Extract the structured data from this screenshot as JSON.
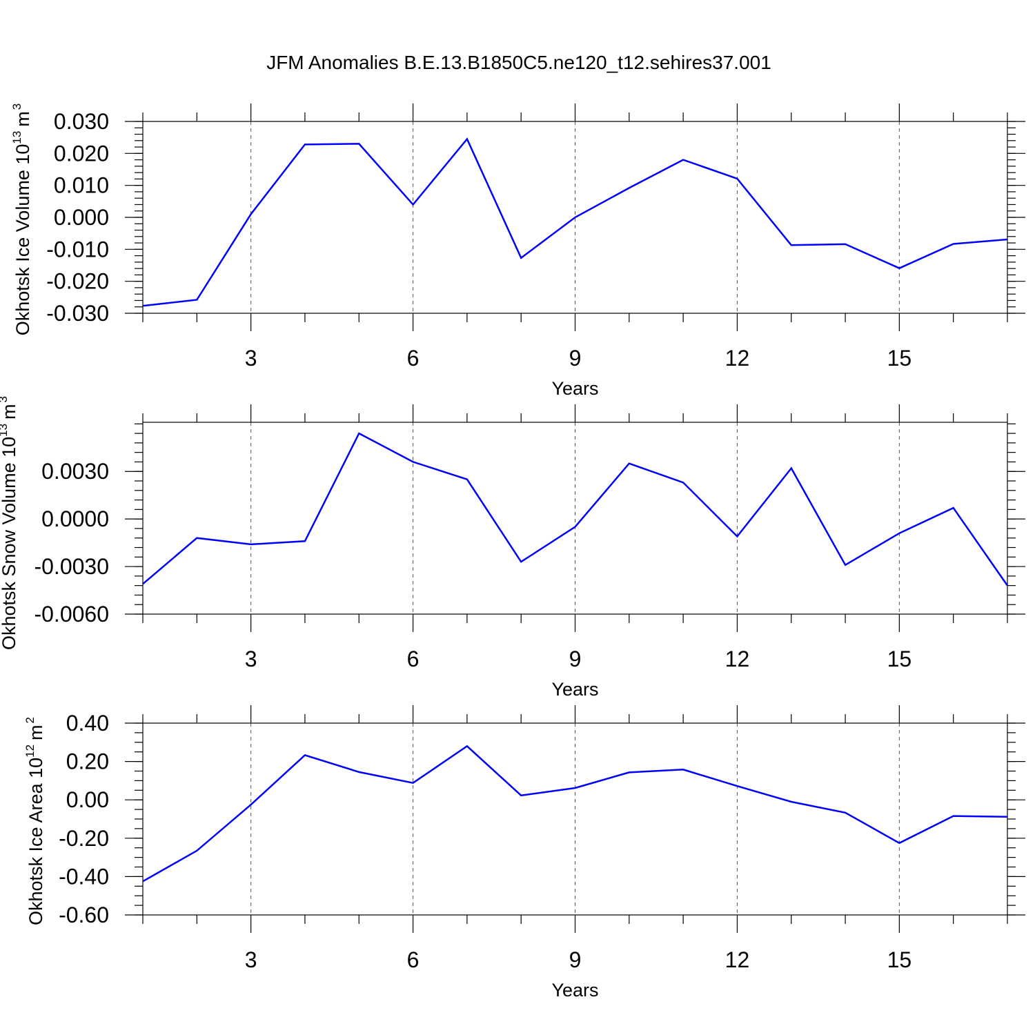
{
  "title": "JFM Anomalies B.E.13.B1850C5.ne120_t12.sehires37.001",
  "colors": {
    "series": "#0000ff",
    "frame": "#000000",
    "grid": "#555555"
  },
  "chart_data": [
    {
      "type": "line",
      "ylabel": "Okhotsk Ice Volume 10",
      "ylabel_exp": "13",
      "ylabel_unit": "m",
      "ylabel_unit_exp": "3",
      "xlabel": "Years",
      "xlim": [
        1,
        17
      ],
      "ylim": [
        -0.03,
        0.03
      ],
      "xticks": [
        3,
        6,
        9,
        12,
        15
      ],
      "xtick_labels": [
        "3",
        "6",
        "9",
        "12",
        "15"
      ],
      "yticks": [
        -0.03,
        -0.02,
        -0.01,
        0.0,
        0.01,
        0.02,
        0.03
      ],
      "ytick_labels": [
        "-0.030",
        "-0.020",
        "-0.010",
        "0.000",
        "0.010",
        "0.020",
        "0.030"
      ],
      "yminor_step": 0.002,
      "grid": "vertical dashed at major x ticks",
      "x": [
        1,
        2,
        3,
        4,
        5,
        6,
        7,
        8,
        9,
        10,
        11,
        12,
        13,
        14,
        15,
        16,
        17
      ],
      "values": [
        -0.0277,
        -0.0258,
        0.001,
        0.0228,
        0.023,
        0.004,
        0.0245,
        -0.0127,
        0.0,
        0.0092,
        0.018,
        0.0121,
        -0.0087,
        -0.0084,
        -0.0159,
        -0.0083,
        -0.0069
      ]
    },
    {
      "type": "line",
      "ylabel": "Okhotsk Snow Volume 10",
      "ylabel_exp": "13",
      "ylabel_unit": "m",
      "ylabel_unit_exp": "3",
      "xlabel": "Years",
      "xlim": [
        1,
        17
      ],
      "ylim": [
        -0.006,
        0.0061
      ],
      "xticks": [
        3,
        6,
        9,
        12,
        15
      ],
      "xtick_labels": [
        "3",
        "6",
        "9",
        "12",
        "15"
      ],
      "yticks": [
        -0.006,
        -0.003,
        0.0,
        0.003
      ],
      "ytick_labels": [
        "-0.0060",
        "-0.0030",
        "0.0000",
        "0.0030"
      ],
      "yminor_step": 0.0006,
      "grid": "vertical dashed at major x ticks",
      "x": [
        1,
        2,
        3,
        4,
        5,
        6,
        7,
        8,
        9,
        10,
        11,
        12,
        13,
        14,
        15,
        16,
        17
      ],
      "values": [
        -0.0041,
        -0.0012,
        -0.0016,
        -0.0014,
        0.0054,
        0.0036,
        0.0025,
        -0.0027,
        -0.0005,
        0.0035,
        0.0023,
        -0.0011,
        0.0032,
        -0.0029,
        -0.0009,
        0.0007,
        -0.0042
      ]
    },
    {
      "type": "line",
      "ylabel": "Okhotsk Ice Area 10",
      "ylabel_exp": "12",
      "ylabel_unit": "m",
      "ylabel_unit_exp": "2",
      "xlabel": "Years",
      "xlim": [
        1,
        17
      ],
      "ylim": [
        -0.6,
        0.4
      ],
      "xticks": [
        3,
        6,
        9,
        12,
        15
      ],
      "xtick_labels": [
        "3",
        "6",
        "9",
        "12",
        "15"
      ],
      "yticks": [
        -0.6,
        -0.4,
        -0.2,
        0.0,
        0.2,
        0.4
      ],
      "ytick_labels": [
        "-0.60",
        "-0.40",
        "-0.20",
        "0.00",
        "0.20",
        "0.40"
      ],
      "yminor_step": 0.05,
      "grid": "vertical dashed at major x ticks",
      "x": [
        1,
        2,
        3,
        4,
        5,
        6,
        7,
        8,
        9,
        10,
        11,
        12,
        13,
        14,
        15,
        16,
        17
      ],
      "values": [
        -0.425,
        -0.265,
        -0.025,
        0.233,
        0.145,
        0.088,
        0.28,
        0.023,
        0.062,
        0.143,
        0.158,
        0.072,
        -0.01,
        -0.067,
        -0.225,
        -0.084,
        -0.088
      ]
    }
  ]
}
